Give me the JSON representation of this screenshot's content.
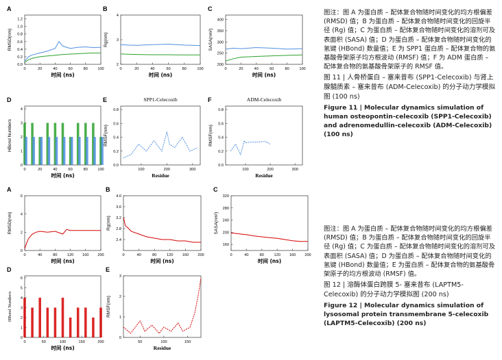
{
  "fig11": {
    "panels": [
      {
        "id": "A",
        "letter": "A",
        "xlabel": "时间 (ns)",
        "ylabel": "RMSD(nm)",
        "xticks": [
          "0",
          "20",
          "40",
          "60",
          "80",
          "100"
        ],
        "yticks": [
          "0.0",
          "0.2",
          "0.4",
          "0.6",
          "0.8",
          "1.0",
          "1.2"
        ],
        "xlim": [
          0,
          100
        ],
        "ylim": [
          0,
          1.3
        ]
      },
      {
        "id": "B",
        "letter": "B",
        "xlabel": "时间 (ns)",
        "ylabel": "Rg(nm)",
        "xticks": [
          "0",
          "20",
          "40",
          "60",
          "80",
          "100"
        ],
        "yticks": [
          "2",
          "3",
          "4"
        ],
        "xlim": [
          0,
          100
        ],
        "ylim": [
          2,
          4
        ]
      },
      {
        "id": "C",
        "letter": "C",
        "xlabel": "时间 (ns)",
        "ylabel": "SASA(nm²)",
        "xticks": [
          "0",
          "20",
          "40",
          "60",
          "80",
          "100"
        ],
        "yticks": [
          "200",
          "250",
          "300",
          "350",
          "400"
        ],
        "xlim": [
          0,
          100
        ],
        "ylim": [
          200,
          420
        ]
      },
      {
        "id": "D",
        "letter": "D",
        "xlabel": "时间 (ns)",
        "ylabel": "HBond Numbers",
        "xticks": [
          "0",
          "20",
          "40",
          "60",
          "80",
          "100"
        ],
        "yticks": [
          "0",
          "1",
          "2",
          "3",
          "4"
        ],
        "xlim": [
          0,
          100
        ],
        "ylim": [
          0,
          4.2
        ]
      },
      {
        "id": "E",
        "letter": "E",
        "title": "SPP1-Celecoxib",
        "xlabel": "Residue",
        "ylabel": "RMSF(nm)",
        "xticks": [
          "100",
          "200",
          "300"
        ],
        "yticks": [
          "0.0",
          "0.2",
          "0.4",
          "0.6",
          "0.8"
        ],
        "xlim": [
          20,
          330
        ],
        "ylim": [
          0,
          0.85
        ]
      },
      {
        "id": "F",
        "letter": "F",
        "title": "ADM-Celecoxib",
        "xlabel": "Residue",
        "ylabel": "RMSF(nm)",
        "xticks": [
          "100",
          "200",
          "300"
        ],
        "yticks": [
          "0.0",
          "0.2",
          "0.4",
          "0.6",
          "0.8"
        ],
        "xlim": [
          20,
          330
        ],
        "ylim": [
          0,
          0.85
        ]
      }
    ],
    "caption": {
      "note": "图注：图 A 为蛋白质 – 配体复合物随时间变化的均方根偏差 (RMSD) 值；B 为蛋白质 – 配体复合物随时间变化的回旋半径 (Rg) 值；C 为蛋白质 – 配体复合物随时间变化的溶剂可及表面积 (SASA) 值；D 为蛋白质 – 配体复合物随时间变化的氢键 (HBond) 数量值；E 为 SPP1 蛋白质 – 配体复合物的氨基酸骨架原子均方根波动 (RMSF) 值；F 为 ADM 蛋白质 – 配体复合物的氨基酸骨架原子的 RMSF 值。",
      "title_cn": "图 11 | 人骨桥蛋白 – 塞来昔布 (SPP1-Celecoxib) 与肾上腺髓质素 – 塞来昔布 (ADM-Celecoxib) 的分子动力学模拟图 (100 ns)",
      "title_en": "Figure 11 | Molecular dynamics simulation of human osteopontin-celecoxib (SPP1-Celecoxib) and adrenomedullin-celecoxib (ADM-Celecoxib) (100 ns)"
    }
  },
  "fig12": {
    "panels": [
      {
        "id": "A",
        "letter": "A",
        "xlabel": "时间 (ns)",
        "ylabel": "RMSD(nm)",
        "xticks": [
          "0",
          "40",
          "80",
          "120",
          "160",
          "200"
        ],
        "yticks": [
          "0",
          "2",
          "4",
          "6"
        ],
        "xlim": [
          0,
          200
        ],
        "ylim": [
          0,
          6
        ]
      },
      {
        "id": "B",
        "letter": "B",
        "xlabel": "时间 (ns)",
        "ylabel": "Rg(nm)",
        "xticks": [
          "0",
          "40",
          "80",
          "120",
          "160",
          "200"
        ],
        "yticks": [
          "2.4",
          "2.8",
          "3.2",
          "3.6",
          "4.0"
        ],
        "xlim": [
          0,
          200
        ],
        "ylim": [
          2.0,
          4.0
        ]
      },
      {
        "id": "C",
        "letter": "C",
        "xlabel": "时间 (ns)",
        "ylabel": "SASA(nm²)",
        "xticks": [
          "0",
          "40",
          "80",
          "120",
          "160",
          "200"
        ],
        "yticks": [
          "160",
          "200",
          "240",
          "280",
          "320"
        ],
        "xlim": [
          0,
          200
        ],
        "ylim": [
          140,
          320
        ]
      },
      {
        "id": "D",
        "letter": "D",
        "xlabel": "时间 (ns)",
        "ylabel": "HBond Numbers",
        "xticks": [
          "0",
          "50",
          "100",
          "150",
          "200"
        ],
        "yticks": [
          "0",
          "1",
          "2",
          "3",
          "4",
          "5",
          "6"
        ],
        "xlim": [
          0,
          200
        ],
        "ylim": [
          0,
          6.2
        ]
      },
      {
        "id": "E",
        "letter": "E",
        "xlabel": "Residue",
        "ylabel": "RMSF(nm)",
        "xticks": [
          "50",
          "100",
          "150"
        ],
        "yticks": [
          "0",
          "1",
          "2",
          "3"
        ],
        "xlim": [
          15,
          178
        ],
        "ylim": [
          0,
          3
        ]
      }
    ],
    "caption": {
      "note": "图注：图 A 为蛋白质 – 配体复合物随时间变化的均方根偏差 (RMSD) 值；B 为蛋白质 – 配体复合物随时间变化的回旋半径 (Rg) 值；C 为蛋白质 – 配体复合物随时间变化的溶剂可及表面积 (SASA) 值；D 为蛋白质 – 配体复合物随时间变化的氢键 (HBond) 数量值；E 为蛋白质 – 配体复合物的氨基酸骨架原子的均方根波动 (RMSF) 值。",
      "title_cn": "图 12 | 溶酶体蛋白跨膜 5- 塞来昔布 (LAPTM5-Celecoxib) 的分子动力学模拟图 (200 ns)",
      "title_en": "Figure 12 | Molecular dynamics simulation of lysosomal protein transmembrane 5-celecoxib (LAPTM5-Celecoxib) (200 ns)"
    }
  },
  "colors": {
    "spp1": "#2ca02c",
    "adm": "#4f8fe0",
    "laptm5": "#d60000"
  },
  "chart_data": [
    {
      "panel": "11A",
      "type": "line",
      "xlim": [
        0,
        100
      ],
      "ylim": [
        0,
        1.3
      ],
      "series": [
        {
          "color": "#2ca02c",
          "x": [
            0,
            5,
            10,
            20,
            30,
            40,
            50,
            60,
            70,
            80,
            90,
            100
          ],
          "values": [
            0.05,
            0.12,
            0.16,
            0.2,
            0.22,
            0.24,
            0.26,
            0.27,
            0.28,
            0.29,
            0.3,
            0.3
          ]
        },
        {
          "color": "#4f8fe0",
          "x": [
            0,
            5,
            10,
            20,
            30,
            40,
            45,
            50,
            60,
            70,
            80,
            90,
            100
          ],
          "values": [
            0.08,
            0.2,
            0.25,
            0.3,
            0.35,
            0.42,
            0.6,
            0.48,
            0.42,
            0.45,
            0.46,
            0.44,
            0.45
          ]
        }
      ]
    },
    {
      "panel": "11B",
      "type": "line",
      "xlim": [
        0,
        100
      ],
      "ylim": [
        2,
        4
      ],
      "series": [
        {
          "color": "#2ca02c",
          "x": [
            0,
            10,
            20,
            40,
            60,
            80,
            100
          ],
          "values": [
            2.42,
            2.41,
            2.4,
            2.39,
            2.39,
            2.38,
            2.38
          ]
        },
        {
          "color": "#4f8fe0",
          "x": [
            0,
            10,
            20,
            40,
            60,
            80,
            100
          ],
          "values": [
            2.8,
            2.78,
            2.77,
            2.8,
            2.82,
            2.78,
            2.76
          ]
        }
      ]
    },
    {
      "panel": "11C",
      "type": "line",
      "xlim": [
        0,
        100
      ],
      "ylim": [
        200,
        420
      ],
      "series": [
        {
          "color": "#2ca02c",
          "x": [
            0,
            10,
            20,
            40,
            60,
            80,
            100
          ],
          "values": [
            215,
            225,
            232,
            235,
            238,
            240,
            242
          ]
        },
        {
          "color": "#4f8fe0",
          "x": [
            0,
            10,
            20,
            40,
            60,
            80,
            100
          ],
          "values": [
            268,
            272,
            270,
            275,
            272,
            268,
            270
          ]
        }
      ]
    },
    {
      "panel": "11D",
      "type": "bar",
      "xlim": [
        0,
        100
      ],
      "ylim": [
        0,
        4.2
      ],
      "series": [
        {
          "color": "#2ca02c",
          "x": [
            0,
            10,
            20,
            30,
            40,
            50,
            60,
            70,
            80,
            90,
            100
          ],
          "values": [
            3,
            3,
            2,
            3,
            3,
            3,
            2,
            3,
            3,
            3,
            2
          ]
        },
        {
          "color": "#4f8fe0",
          "x": [
            0,
            10,
            20,
            30,
            40,
            50,
            60,
            70,
            80,
            90,
            100
          ],
          "values": [
            2,
            2,
            2,
            2,
            2,
            2,
            2,
            2,
            2,
            2,
            2
          ]
        }
      ]
    },
    {
      "panel": "11E",
      "type": "line",
      "xlim": [
        20,
        330
      ],
      "ylim": [
        0,
        0.85
      ],
      "series": [
        {
          "color": "#4f8fe0",
          "x": [
            30,
            60,
            90,
            120,
            150,
            180,
            200,
            210,
            230,
            260,
            290,
            320
          ],
          "values": [
            0.1,
            0.15,
            0.3,
            0.2,
            0.35,
            0.2,
            0.48,
            0.3,
            0.25,
            0.4,
            0.2,
            0.25
          ]
        }
      ]
    },
    {
      "panel": "11F",
      "type": "line",
      "xlim": [
        20,
        330
      ],
      "ylim": [
        0,
        0.85
      ],
      "series": [
        {
          "color": "#4f8fe0",
          "x": [
            40,
            60,
            80,
            95,
            100,
            120,
            150,
            180,
            200
          ],
          "values": [
            0.2,
            0.3,
            0.15,
            0.35,
            0.32,
            0.33,
            0.33,
            0.34,
            0.3
          ]
        }
      ]
    },
    {
      "panel": "12A",
      "type": "line",
      "xlim": [
        0,
        200
      ],
      "ylim": [
        0,
        6
      ],
      "series": [
        {
          "color": "#d60000",
          "x": [
            0,
            5,
            10,
            20,
            30,
            40,
            60,
            80,
            100,
            110,
            120,
            140,
            160,
            180,
            200
          ],
          "values": [
            0.2,
            0.8,
            1.3,
            1.8,
            2.0,
            2.1,
            2.0,
            2.1,
            1.8,
            2.3,
            2.2,
            2.2,
            2.2,
            2.2,
            2.2
          ]
        }
      ]
    },
    {
      "panel": "12B",
      "type": "line",
      "xlim": [
        0,
        200
      ],
      "ylim": [
        2.0,
        4.0
      ],
      "series": [
        {
          "color": "#d60000",
          "x": [
            0,
            2,
            5,
            10,
            20,
            40,
            60,
            80,
            100,
            120,
            140,
            160,
            180,
            200
          ],
          "values": [
            3.2,
            3.1,
            2.9,
            2.85,
            2.7,
            2.6,
            2.5,
            2.45,
            2.4,
            2.4,
            2.35,
            2.35,
            2.3,
            2.3
          ]
        }
      ]
    },
    {
      "panel": "12C",
      "type": "line",
      "xlim": [
        0,
        200
      ],
      "ylim": [
        140,
        320
      ],
      "series": [
        {
          "color": "#d60000",
          "x": [
            0,
            20,
            40,
            60,
            80,
            100,
            120,
            140,
            160,
            180,
            200
          ],
          "values": [
            198,
            195,
            192,
            188,
            185,
            182,
            180,
            176,
            172,
            170,
            170
          ]
        }
      ]
    },
    {
      "panel": "12D",
      "type": "bar",
      "xlim": [
        0,
        200
      ],
      "ylim": [
        0,
        6.2
      ],
      "series": [
        {
          "color": "#d60000",
          "x": [
            0,
            20,
            40,
            60,
            80,
            100,
            120,
            140,
            160,
            180,
            200
          ],
          "values": [
            4,
            3,
            4,
            3,
            3,
            4,
            2,
            3,
            3,
            2,
            3
          ]
        }
      ]
    },
    {
      "panel": "12E",
      "type": "line",
      "xlim": [
        15,
        178
      ],
      "ylim": [
        0,
        3
      ],
      "series": [
        {
          "color": "#d60000",
          "x": [
            15,
            30,
            50,
            60,
            75,
            90,
            100,
            115,
            130,
            140,
            155,
            165,
            172,
            178
          ],
          "values": [
            0.5,
            0.2,
            0.8,
            0.3,
            0.6,
            0.2,
            0.5,
            0.3,
            0.7,
            0.3,
            0.5,
            1.2,
            2.0,
            2.9
          ]
        }
      ]
    }
  ]
}
